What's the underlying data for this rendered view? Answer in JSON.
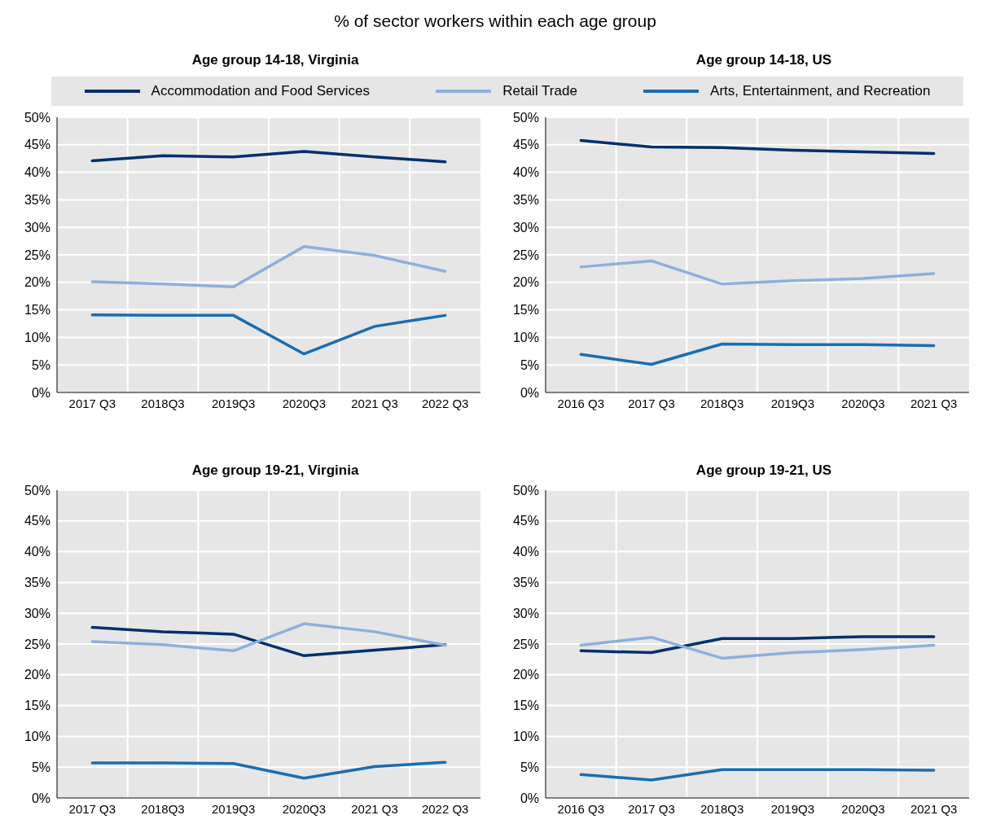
{
  "chart_data": [
    {
      "type": "line",
      "subtitle": "% of sector workers within each age group",
      "title": "Age group 14-18, Virginia",
      "categories": [
        "2017 Q3",
        "2018Q3",
        "2019Q3",
        "2020Q3",
        "2021 Q3",
        "2022 Q3"
      ],
      "legend": "top",
      "grid": true,
      "marker": "none",
      "line_style": "solid",
      "ylim": [
        0,
        50
      ],
      "yticks": [
        {
          "value": 0,
          "label": "0%"
        },
        {
          "value": 5,
          "label": "5%"
        },
        {
          "value": 10,
          "label": "10%"
        },
        {
          "value": 15,
          "label": "15%"
        },
        {
          "value": 20,
          "label": "20%"
        },
        {
          "value": 25,
          "label": "25%"
        },
        {
          "value": 30,
          "label": "30%"
        },
        {
          "value": 35,
          "label": "35%"
        },
        {
          "value": 40,
          "label": "40%"
        },
        {
          "value": 45,
          "label": "45%"
        },
        {
          "value": 50,
          "label": "50%"
        }
      ],
      "series": [
        {
          "name": "Accommodation and Food Services",
          "color": "#002f6c",
          "values": [
            42.1,
            43.0,
            42.8,
            43.8,
            42.8,
            41.9
          ]
        },
        {
          "name": "Retail Trade",
          "color": "#8cb0dc",
          "values": [
            20.1,
            19.7,
            19.2,
            26.5,
            24.9,
            22.0
          ]
        },
        {
          "name": "Arts, Entertainment, and Recreation",
          "color": "#1a6db0",
          "values": [
            14.1,
            14.0,
            14.0,
            7.0,
            12.0,
            14.0
          ]
        }
      ]
    },
    {
      "type": "line",
      "title": "Age group 14-18, US",
      "categories": [
        "2016 Q3",
        "2017 Q3",
        "2018Q3",
        "2019Q3",
        "2020Q3",
        "2021 Q3"
      ],
      "grid": true,
      "marker": "none",
      "line_style": "solid",
      "ylim": [
        0,
        50
      ],
      "yticks": [
        {
          "value": 0,
          "label": "0%"
        },
        {
          "value": 5,
          "label": "5%"
        },
        {
          "value": 10,
          "label": "10%"
        },
        {
          "value": 15,
          "label": "15%"
        },
        {
          "value": 20,
          "label": "20%"
        },
        {
          "value": 25,
          "label": "25%"
        },
        {
          "value": 30,
          "label": "30%"
        },
        {
          "value": 35,
          "label": "35%"
        },
        {
          "value": 40,
          "label": "40%"
        },
        {
          "value": 45,
          "label": "45%"
        },
        {
          "value": 50,
          "label": "50%"
        }
      ],
      "series": [
        {
          "color": "#002f6c",
          "values": [
            45.8,
            44.6,
            44.5,
            44.0,
            43.7,
            43.4
          ]
        },
        {
          "color": "#8cb0dc",
          "values": [
            22.8,
            23.9,
            19.7,
            20.3,
            20.7,
            21.6
          ]
        },
        {
          "color": "#1a6db0",
          "values": [
            6.9,
            5.1,
            8.8,
            8.7,
            8.7,
            8.5
          ]
        }
      ]
    },
    {
      "type": "line",
      "title": "Age group 19-21, Virginia",
      "categories": [
        "2017 Q3",
        "2018Q3",
        "2019Q3",
        "2020Q3",
        "2021 Q3",
        "2022 Q3"
      ],
      "grid": true,
      "marker": "none",
      "line_style": "solid",
      "ylim": [
        0,
        50
      ],
      "yticks": [
        {
          "value": 0,
          "label": "0%"
        },
        {
          "value": 5,
          "label": "5%"
        },
        {
          "value": 10,
          "label": "10%"
        },
        {
          "value": 15,
          "label": "15%"
        },
        {
          "value": 20,
          "label": "20%"
        },
        {
          "value": 25,
          "label": "25%"
        },
        {
          "value": 30,
          "label": "30%"
        },
        {
          "value": 35,
          "label": "35%"
        },
        {
          "value": 40,
          "label": "40%"
        },
        {
          "value": 45,
          "label": "45%"
        },
        {
          "value": 50,
          "label": "50%"
        }
      ],
      "series": [
        {
          "color": "#002f6c",
          "values": [
            27.7,
            27.0,
            26.6,
            23.1,
            24.0,
            24.9
          ]
        },
        {
          "color": "#8cb0dc",
          "values": [
            25.4,
            24.9,
            23.9,
            28.3,
            27.0,
            24.8
          ]
        },
        {
          "color": "#1a6db0",
          "values": [
            5.7,
            5.7,
            5.6,
            3.2,
            5.1,
            5.8
          ]
        }
      ]
    },
    {
      "type": "line",
      "title": "Age group 19-21, US",
      "categories": [
        "2016 Q3",
        "2017 Q3",
        "2018Q3",
        "2019Q3",
        "2020Q3",
        "2021 Q3"
      ],
      "grid": true,
      "marker": "none",
      "line_style": "solid",
      "ylim": [
        0,
        50
      ],
      "yticks": [
        {
          "value": 0,
          "label": "0%"
        },
        {
          "value": 5,
          "label": "5%"
        },
        {
          "value": 10,
          "label": "10%"
        },
        {
          "value": 15,
          "label": "15%"
        },
        {
          "value": 20,
          "label": "20%"
        },
        {
          "value": 25,
          "label": "25%"
        },
        {
          "value": 30,
          "label": "30%"
        },
        {
          "value": 35,
          "label": "35%"
        },
        {
          "value": 40,
          "label": "40%"
        },
        {
          "value": 45,
          "label": "45%"
        },
        {
          "value": 50,
          "label": "50%"
        }
      ],
      "series": [
        {
          "color": "#002f6c",
          "values": [
            23.9,
            23.6,
            25.9,
            25.9,
            26.2,
            26.2
          ]
        },
        {
          "color": "#8cb0dc",
          "values": [
            24.8,
            26.1,
            22.7,
            23.6,
            24.1,
            24.8
          ]
        },
        {
          "color": "#1a6db0",
          "values": [
            3.8,
            2.9,
            4.6,
            4.6,
            4.6,
            4.5
          ]
        }
      ]
    }
  ]
}
